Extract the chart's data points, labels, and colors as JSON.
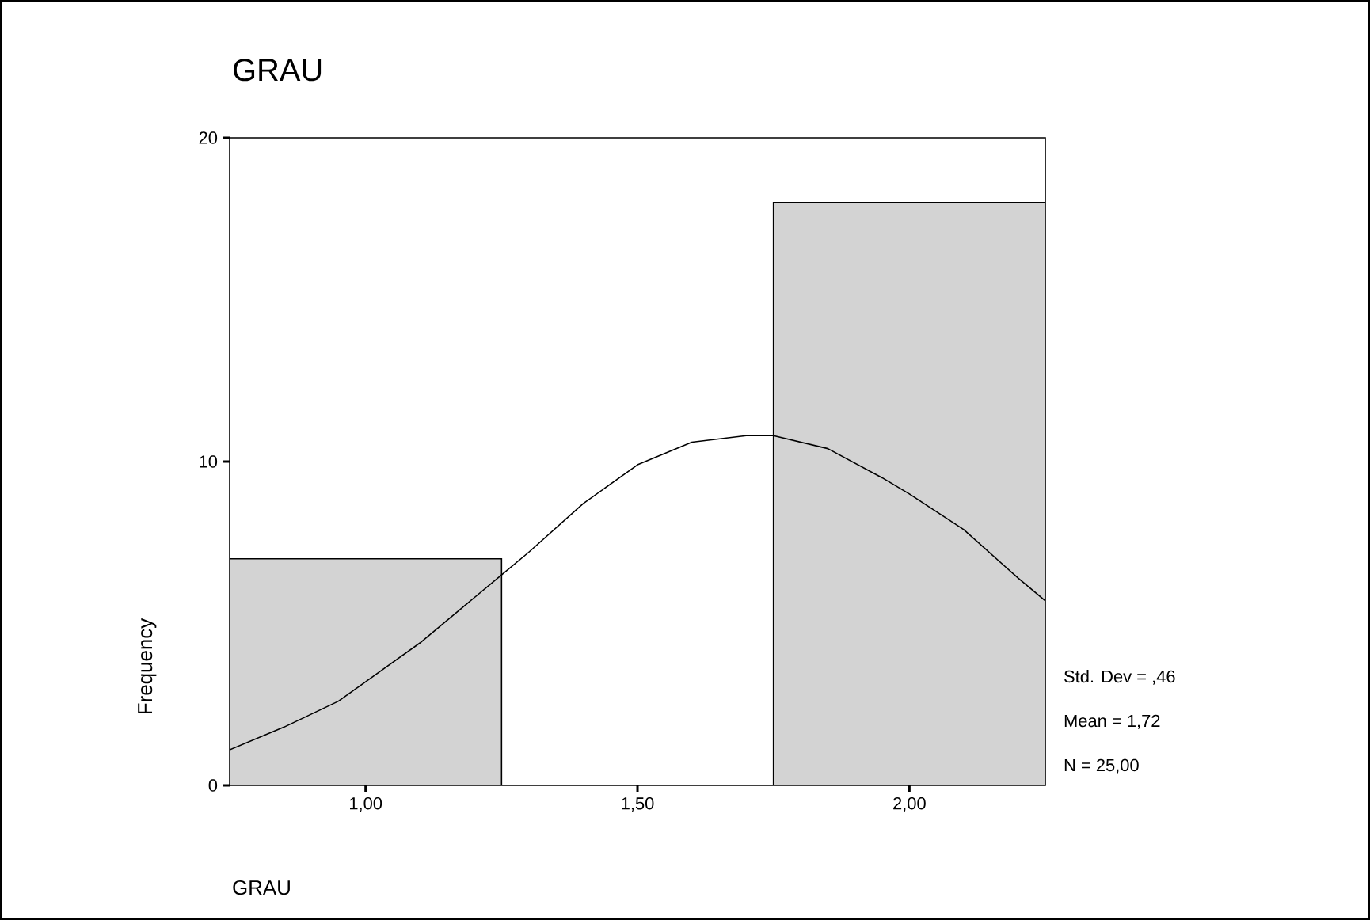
{
  "chart_data": {
    "type": "histogram",
    "title": "GRAU",
    "xlabel": "GRAU",
    "ylabel": "Frequency",
    "bins": [
      0.75,
      1.25,
      1.75,
      2.25
    ],
    "values": [
      7,
      0,
      18
    ],
    "color": "#d3d3d3",
    "series": [
      {
        "type": "line",
        "color": "#000000",
        "x": [
          0.75,
          0.85,
          0.95,
          1.0,
          1.1,
          1.2,
          1.25,
          1.3,
          1.4,
          1.5,
          1.6,
          1.7,
          1.75,
          1.85,
          1.95,
          2.0,
          2.1,
          2.2,
          2.25
        ],
        "values": [
          1.1,
          1.8,
          2.6,
          3.2,
          4.4,
          5.8,
          6.5,
          7.2,
          8.7,
          9.9,
          10.6,
          10.8,
          10.8,
          10.4,
          9.5,
          9.0,
          7.9,
          6.4,
          5.7
        ]
      }
    ],
    "xlim": [
      0.75,
      2.25
    ],
    "ylim": [
      0,
      20
    ],
    "xticks": [
      {
        "value": 1,
        "label": "1,00"
      },
      {
        "value": 1.5,
        "label": "1,50"
      },
      {
        "value": 2,
        "label": "2,00"
      }
    ],
    "yticks": [
      0,
      10,
      20
    ],
    "annotations": [
      "Std. Dev = ,46",
      "Mean = 1,72",
      "N = 25,00"
    ]
  }
}
